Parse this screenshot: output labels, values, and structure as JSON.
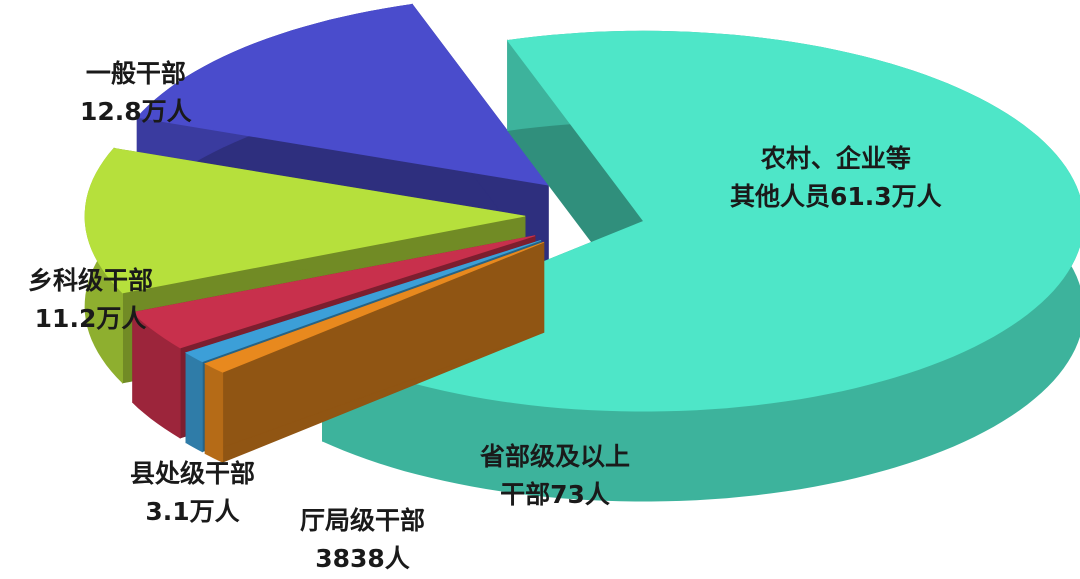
{
  "chart_data": {
    "type": "pie",
    "style": "3d-exploded",
    "unit": "万人",
    "slices": [
      {
        "name": "农村、企业等其他人员",
        "value": 61.3,
        "label_line1": "农村、企业等",
        "label_line2": "其他人员61.3万人",
        "color": "#4ee6c8"
      },
      {
        "name": "厅局级干部",
        "value": 0.3838,
        "label_line1": "厅局级干部",
        "label_line2": "3838人",
        "color": "#e8891e"
      },
      {
        "name": "省部级及以上干部",
        "value": 0.0073,
        "label_line1": "省部级及以上",
        "label_line2": "干部73人",
        "color": "#3c9fd8"
      },
      {
        "name": "县处级干部",
        "value": 3.1,
        "label_line1": "县处级干部",
        "label_line2": "3.1万人",
        "color": "#c8304c"
      },
      {
        "name": "乡科级干部",
        "value": 11.2,
        "label_line1": "乡科级干部",
        "label_line2": "11.2万人",
        "color": "#b6e03c"
      },
      {
        "name": "一般干部",
        "value": 12.8,
        "label_line1": "一般干部",
        "label_line2": "12.8万人",
        "color": "#4a4ccc"
      }
    ],
    "legend": "none"
  }
}
